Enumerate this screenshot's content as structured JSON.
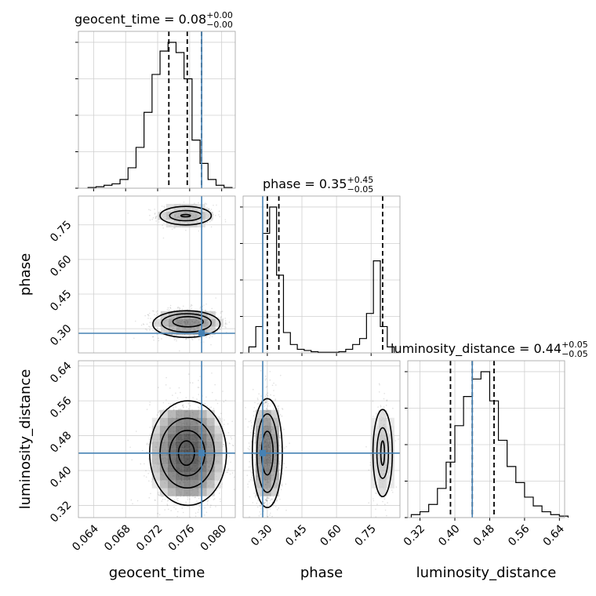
{
  "chart_data": {
    "type": "corner",
    "parameters": [
      "geocent_time",
      "phase",
      "luminosity_distance"
    ],
    "truths": {
      "geocent_time": 0.0775,
      "phase": 0.28,
      "luminosity_distance": 0.44
    },
    "truth_color": "#4682b4",
    "titles": [
      {
        "param": "geocent_time",
        "text": "geocent_time = 0.08",
        "sup": "+0.00",
        "sub": "−0.00"
      },
      {
        "param": "phase",
        "text": "phase = 0.35",
        "sup": "+0.45",
        "sub": "−0.05"
      },
      {
        "param": "luminosity_distance",
        "text": "luminosity_distance = 0.44",
        "sup": "+0.05",
        "sub": "−0.05"
      }
    ],
    "axes": {
      "geocent_time": {
        "range": [
          0.0621,
          0.0817
        ],
        "ticks": [
          "0.064",
          "0.068",
          "0.072",
          "0.076",
          "0.080"
        ],
        "tick_values": [
          0.064,
          0.068,
          0.072,
          0.076,
          0.08
        ]
      },
      "phase": {
        "range": [
          0.195,
          0.875
        ],
        "ticks": [
          "0.30",
          "0.45",
          "0.60",
          "0.75"
        ],
        "tick_values": [
          0.3,
          0.45,
          0.6,
          0.75
        ]
      },
      "luminosity_distance": {
        "range": [
          0.292,
          0.652
        ],
        "ticks": [
          "0.32",
          "0.40",
          "0.48",
          "0.56",
          "0.64"
        ],
        "tick_values": [
          0.32,
          0.4,
          0.48,
          0.56,
          0.64
        ]
      }
    },
    "histograms": [
      {
        "param": "geocent_time",
        "bin_edges": [
          0.0633,
          0.0643,
          0.0653,
          0.0663,
          0.0673,
          0.0683,
          0.0693,
          0.0703,
          0.0713,
          0.0723,
          0.0733,
          0.0743,
          0.0753,
          0.0763,
          0.0773,
          0.0783,
          0.0793,
          0.0803,
          0.0813
        ],
        "counts": [
          0.005,
          0.01,
          0.02,
          0.03,
          0.06,
          0.14,
          0.28,
          0.52,
          0.78,
          0.94,
          1.0,
          0.93,
          0.75,
          0.33,
          0.17,
          0.06,
          0.02,
          0.005
        ],
        "quantiles": [
          0.0734,
          0.0757,
          0.0775
        ]
      },
      {
        "param": "phase",
        "bin_edges": [
          0.22,
          0.25,
          0.28,
          0.31,
          0.34,
          0.37,
          0.4,
          0.43,
          0.46,
          0.49,
          0.52,
          0.55,
          0.58,
          0.61,
          0.64,
          0.67,
          0.7,
          0.73,
          0.76,
          0.79,
          0.82,
          0.85
        ],
        "counts": [
          0.05,
          0.22,
          1.0,
          1.22,
          0.65,
          0.17,
          0.07,
          0.03,
          0.02,
          0.01,
          0.005,
          0.005,
          0.005,
          0.01,
          0.03,
          0.07,
          0.12,
          0.33,
          0.77,
          0.22,
          0.05
        ],
        "quantiles": [
          0.3,
          0.35,
          0.8
        ]
      },
      {
        "param": "luminosity_distance",
        "bin_edges": [
          0.3,
          0.32,
          0.34,
          0.36,
          0.38,
          0.4,
          0.42,
          0.44,
          0.46,
          0.48,
          0.5,
          0.52,
          0.54,
          0.56,
          0.58,
          0.6,
          0.62,
          0.64,
          0.66
        ],
        "counts": [
          0.02,
          0.04,
          0.09,
          0.2,
          0.38,
          0.63,
          0.83,
          0.95,
          1.0,
          0.8,
          0.53,
          0.35,
          0.24,
          0.14,
          0.08,
          0.04,
          0.02,
          0.01
        ],
        "quantiles": [
          0.39,
          0.44,
          0.49
        ]
      }
    ],
    "pairs": [
      {
        "x": "geocent_time",
        "y": "phase",
        "modes": [
          {
            "x": 0.0755,
            "y": 0.79,
            "sx": 0.0017,
            "sy": 0.022,
            "weight": 0.38
          },
          {
            "x": 0.0758,
            "y": 0.325,
            "sx": 0.002,
            "sy": 0.03,
            "weight": 0.62
          }
        ],
        "contours": [
          {
            "x": 0.0755,
            "y": 0.79,
            "rx": 0.0032,
            "ry": 0.04
          },
          {
            "x": 0.0755,
            "y": 0.79,
            "rx": 0.002,
            "ry": 0.022
          },
          {
            "x": 0.0755,
            "y": 0.79,
            "rx": 0.0006,
            "ry": 0.005
          },
          {
            "x": 0.0756,
            "y": 0.32,
            "rx": 0.0042,
            "ry": 0.058
          },
          {
            "x": 0.0756,
            "y": 0.325,
            "rx": 0.0031,
            "ry": 0.04
          },
          {
            "x": 0.0758,
            "y": 0.33,
            "rx": 0.0019,
            "ry": 0.022
          }
        ]
      },
      {
        "x": "geocent_time",
        "y": "luminosity_distance",
        "modes": [
          {
            "x": 0.0757,
            "y": 0.44,
            "sx": 0.0022,
            "sy": 0.06,
            "weight": 1.0
          }
        ],
        "contours": [
          {
            "x": 0.0758,
            "y": 0.44,
            "rx": 0.0048,
            "ry": 0.12
          },
          {
            "x": 0.0757,
            "y": 0.44,
            "rx": 0.0034,
            "ry": 0.08
          },
          {
            "x": 0.0757,
            "y": 0.44,
            "rx": 0.0022,
            "ry": 0.052
          },
          {
            "x": 0.0756,
            "y": 0.44,
            "rx": 0.001,
            "ry": 0.028
          }
        ]
      },
      {
        "x": "phase",
        "y": "luminosity_distance",
        "modes": [
          {
            "x": 0.3,
            "y": 0.44,
            "sx": 0.03,
            "sy": 0.06,
            "weight": 0.75
          },
          {
            "x": 0.8,
            "y": 0.44,
            "sx": 0.022,
            "sy": 0.055,
            "weight": 0.25
          }
        ],
        "contours": [
          {
            "x": 0.3,
            "y": 0.44,
            "rx": 0.065,
            "ry": 0.125
          },
          {
            "x": 0.3,
            "y": 0.44,
            "rx": 0.045,
            "ry": 0.09
          },
          {
            "x": 0.3,
            "y": 0.44,
            "rx": 0.025,
            "ry": 0.05
          },
          {
            "x": 0.8,
            "y": 0.44,
            "rx": 0.042,
            "ry": 0.1
          },
          {
            "x": 0.8,
            "y": 0.44,
            "rx": 0.025,
            "ry": 0.058
          },
          {
            "x": 0.8,
            "y": 0.44,
            "rx": 0.008,
            "ry": 0.028
          }
        ]
      }
    ],
    "grid": true
  }
}
